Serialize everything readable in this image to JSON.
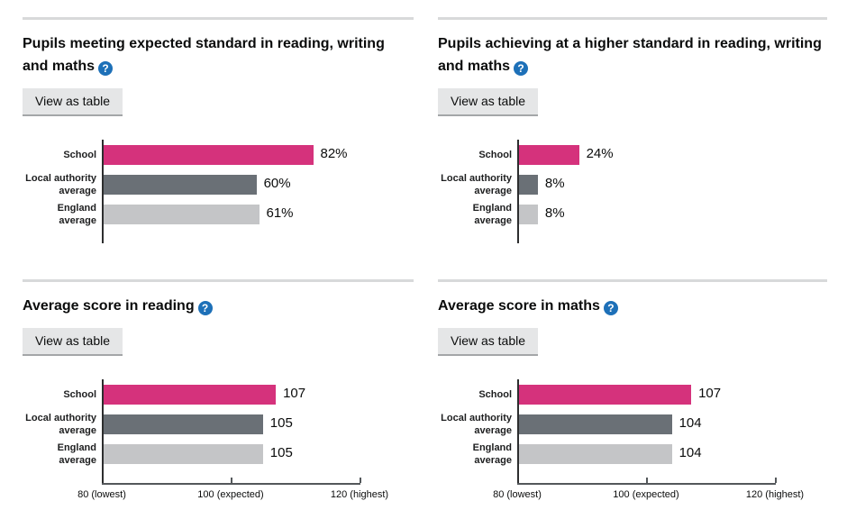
{
  "buttons": {
    "view_as_table": "View as table"
  },
  "icons": {
    "help": "?"
  },
  "colors": {
    "school_bar": "#d5327c",
    "local_authority_bar": "#6a7076",
    "england_bar": "#c4c5c7",
    "help_icon_bg": "#1d70b8",
    "divider": "#d8d9da",
    "axis": "#2d2e2f",
    "button_bg": "#e5e6e7"
  },
  "chart_data": [
    {
      "id": "expected-standard",
      "type": "bar",
      "orientation": "horizontal",
      "title": "Pupils meeting expected standard in reading, writing and maths",
      "categories": [
        "School",
        "Local authority average",
        "England average"
      ],
      "values": [
        82,
        60,
        61
      ],
      "value_labels": [
        "82%",
        "60%",
        "61%"
      ],
      "unit": "%",
      "xlim": [
        0,
        100
      ],
      "grid": false,
      "legend": false,
      "x_axis": null
    },
    {
      "id": "higher-standard",
      "type": "bar",
      "orientation": "horizontal",
      "title": "Pupils achieving at a higher standard in reading, writing and maths",
      "categories": [
        "School",
        "Local authority average",
        "England average"
      ],
      "values": [
        24,
        8,
        8
      ],
      "value_labels": [
        "24%",
        "8%",
        "8%"
      ],
      "unit": "%",
      "xlim": [
        0,
        100
      ],
      "grid": false,
      "legend": false,
      "x_axis": null
    },
    {
      "id": "average-score-reading",
      "type": "bar",
      "orientation": "horizontal",
      "title": "Average score in reading",
      "categories": [
        "School",
        "Local authority average",
        "England average"
      ],
      "values": [
        107,
        105,
        105
      ],
      "value_labels": [
        "107",
        "105",
        "105"
      ],
      "unit": "score",
      "xlim": [
        80,
        120
      ],
      "grid": false,
      "legend": false,
      "x_axis": {
        "ticks": [
          {
            "value": 80,
            "label": "80 (lowest)",
            "mark": false
          },
          {
            "value": 100,
            "label": "100 (expected)",
            "mark": true
          },
          {
            "value": 120,
            "label": "120 (highest)",
            "mark": true
          }
        ]
      }
    },
    {
      "id": "average-score-maths",
      "type": "bar",
      "orientation": "horizontal",
      "title": "Average score in maths",
      "categories": [
        "School",
        "Local authority average",
        "England average"
      ],
      "values": [
        107,
        104,
        104
      ],
      "value_labels": [
        "107",
        "104",
        "104"
      ],
      "unit": "score",
      "xlim": [
        80,
        120
      ],
      "grid": false,
      "legend": false,
      "x_axis": {
        "ticks": [
          {
            "value": 80,
            "label": "80 (lowest)",
            "mark": false
          },
          {
            "value": 100,
            "label": "100 (expected)",
            "mark": true
          },
          {
            "value": 120,
            "label": "120 (highest)",
            "mark": true
          }
        ]
      }
    }
  ]
}
